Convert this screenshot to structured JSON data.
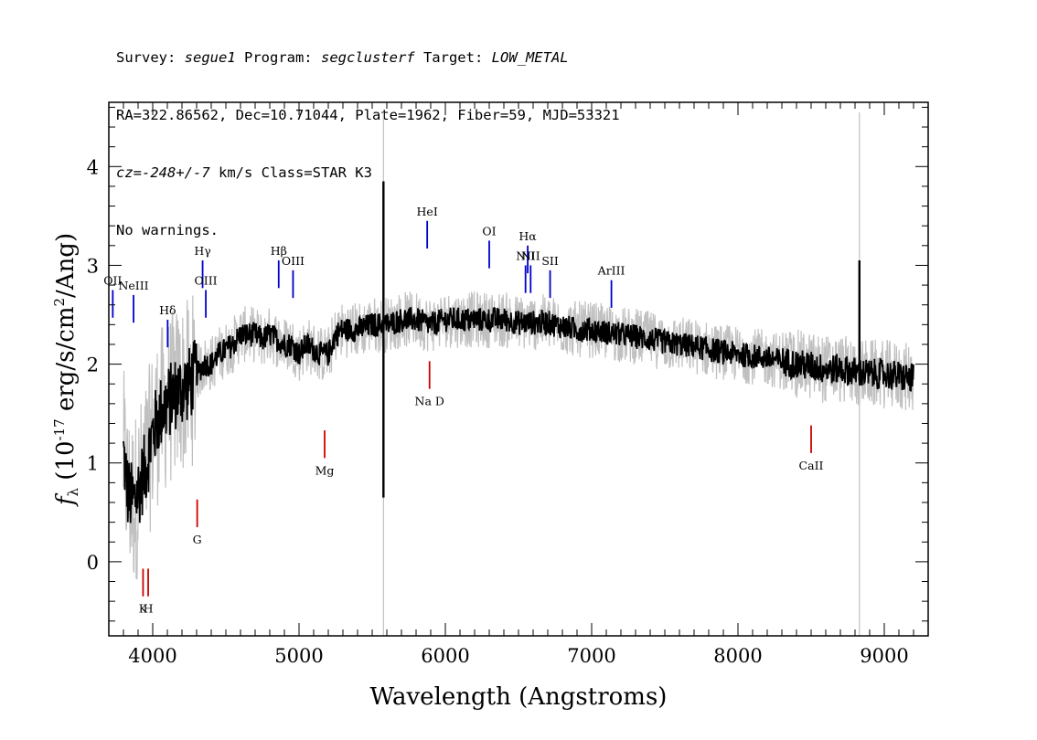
{
  "header": {
    "survey_label": "Survey: ",
    "survey": "segue1",
    "program_label": " Program: ",
    "program": "segclusterf",
    "target_label": " Target: ",
    "target": "LOW_METAL",
    "line2": "RA=322.86562, Dec=10.71044, Plate=1962, Fiber=59, MJD=53321",
    "cz_label": "cz=",
    "cz_value": "-248+/-7",
    "cz_rest": " km/s Class=STAR K3",
    "line4": "No warnings."
  },
  "chart_data": {
    "type": "line",
    "xlabel": "Wavelength (Angstroms)",
    "ylabel_main": "f",
    "ylabel_sub": "λ",
    "ylabel_rest": " (10",
    "ylabel_exp": "-17",
    "ylabel_unit": " erg/s/cm",
    "ylabel_exp2": "2",
    "ylabel_end": "/Ang)",
    "xlim": [
      3700,
      9300
    ],
    "ylim": [
      -0.75,
      4.65
    ],
    "xticks": [
      4000,
      5000,
      6000,
      7000,
      8000,
      9000
    ],
    "yticks": [
      0,
      1,
      2,
      3,
      4
    ],
    "tick_labels_x": [
      "4000",
      "5000",
      "6000",
      "7000",
      "8000",
      "9000"
    ],
    "tick_labels_y": [
      "0",
      "1",
      "2",
      "3",
      "4"
    ],
    "grid": false,
    "colors": {
      "flux": "#000000",
      "error": "#c0c0c0",
      "emission": "#0000cc",
      "absorption": "#cc0000"
    },
    "series": [
      {
        "role": "flux",
        "x": [
          3800,
          3830,
          3870,
          3920,
          3960,
          4000,
          4050,
          4100,
          4150,
          4200,
          4250,
          4300,
          4350,
          4400,
          4450,
          4500,
          4550,
          4600,
          4650,
          4700,
          4750,
          4800,
          4850,
          4900,
          4950,
          5000,
          5050,
          5100,
          5150,
          5200,
          5250,
          5300,
          5400,
          5500,
          5600,
          5700,
          5800,
          5900,
          6000,
          6100,
          6200,
          6300,
          6400,
          6500,
          6600,
          6700,
          6800,
          6900,
          7000,
          7100,
          7200,
          7300,
          7400,
          7500,
          7600,
          7700,
          7800,
          7900,
          8000,
          8100,
          8200,
          8300,
          8400,
          8500,
          8600,
          8700,
          8800,
          8900,
          9000,
          9100,
          9200
        ],
        "y": [
          1.1,
          0.7,
          0.6,
          0.8,
          1.0,
          1.3,
          1.5,
          1.6,
          1.7,
          1.75,
          1.8,
          1.9,
          2.0,
          2.0,
          2.1,
          2.15,
          2.2,
          2.3,
          2.3,
          2.3,
          2.25,
          2.3,
          2.25,
          2.2,
          2.2,
          2.1,
          2.2,
          2.15,
          2.1,
          2.1,
          2.3,
          2.35,
          2.35,
          2.4,
          2.4,
          2.45,
          2.45,
          2.4,
          2.45,
          2.45,
          2.45,
          2.45,
          2.45,
          2.42,
          2.42,
          2.42,
          2.38,
          2.35,
          2.35,
          2.32,
          2.3,
          2.28,
          2.25,
          2.22,
          2.2,
          2.18,
          2.15,
          2.12,
          2.1,
          2.08,
          2.06,
          2.03,
          2.0,
          1.98,
          1.95,
          1.95,
          1.92,
          1.9,
          1.9,
          1.88,
          1.85
        ]
      }
    ],
    "annotations": [
      {
        "label": "Hγ",
        "type": "emission",
        "x": 4341,
        "y": 3.05
      },
      {
        "label": "OIII",
        "type": "emission",
        "x": 4363,
        "y": 2.75
      },
      {
        "label": "Hδ",
        "type": "emission",
        "x": 4102,
        "y": 2.45
      },
      {
        "label": "NeIII",
        "type": "emission",
        "x": 3869,
        "y": 2.7
      },
      {
        "label": "OII",
        "type": "emission",
        "x": 3727,
        "y": 2.75
      },
      {
        "label": "Hβ",
        "type": "emission",
        "x": 4861,
        "y": 3.05
      },
      {
        "label": "OIII",
        "type": "emission",
        "x": 4959,
        "y": 2.95
      },
      {
        "label": "HeI",
        "type": "emission",
        "x": 5876,
        "y": 3.45
      },
      {
        "label": "OI",
        "type": "emission",
        "x": 6300,
        "y": 3.25
      },
      {
        "label": "NII",
        "type": "emission",
        "x": 6548,
        "y": 3.0
      },
      {
        "label": "Hα",
        "type": "emission",
        "x": 6563,
        "y": 3.2
      },
      {
        "label": "NII",
        "type": "emission",
        "x": 6583,
        "y": 3.0
      },
      {
        "label": "SII",
        "type": "emission",
        "x": 6716,
        "y": 2.95
      },
      {
        "label": "ArIII",
        "type": "emission",
        "x": 7135,
        "y": 2.85
      },
      {
        "label": "K",
        "type": "absorption",
        "x": 3934,
        "y": -0.35
      },
      {
        "label": "H",
        "type": "absorption",
        "x": 3969,
        "y": -0.35
      },
      {
        "label": "G",
        "type": "absorption",
        "x": 4304,
        "y": 0.35
      },
      {
        "label": "Mg",
        "type": "absorption",
        "x": 5175,
        "y": 1.05
      },
      {
        "label": "Na D",
        "type": "absorption",
        "x": 5892,
        "y": 1.75
      },
      {
        "label": "CaII",
        "type": "absorption",
        "x": 8500,
        "y": 1.1
      }
    ]
  }
}
